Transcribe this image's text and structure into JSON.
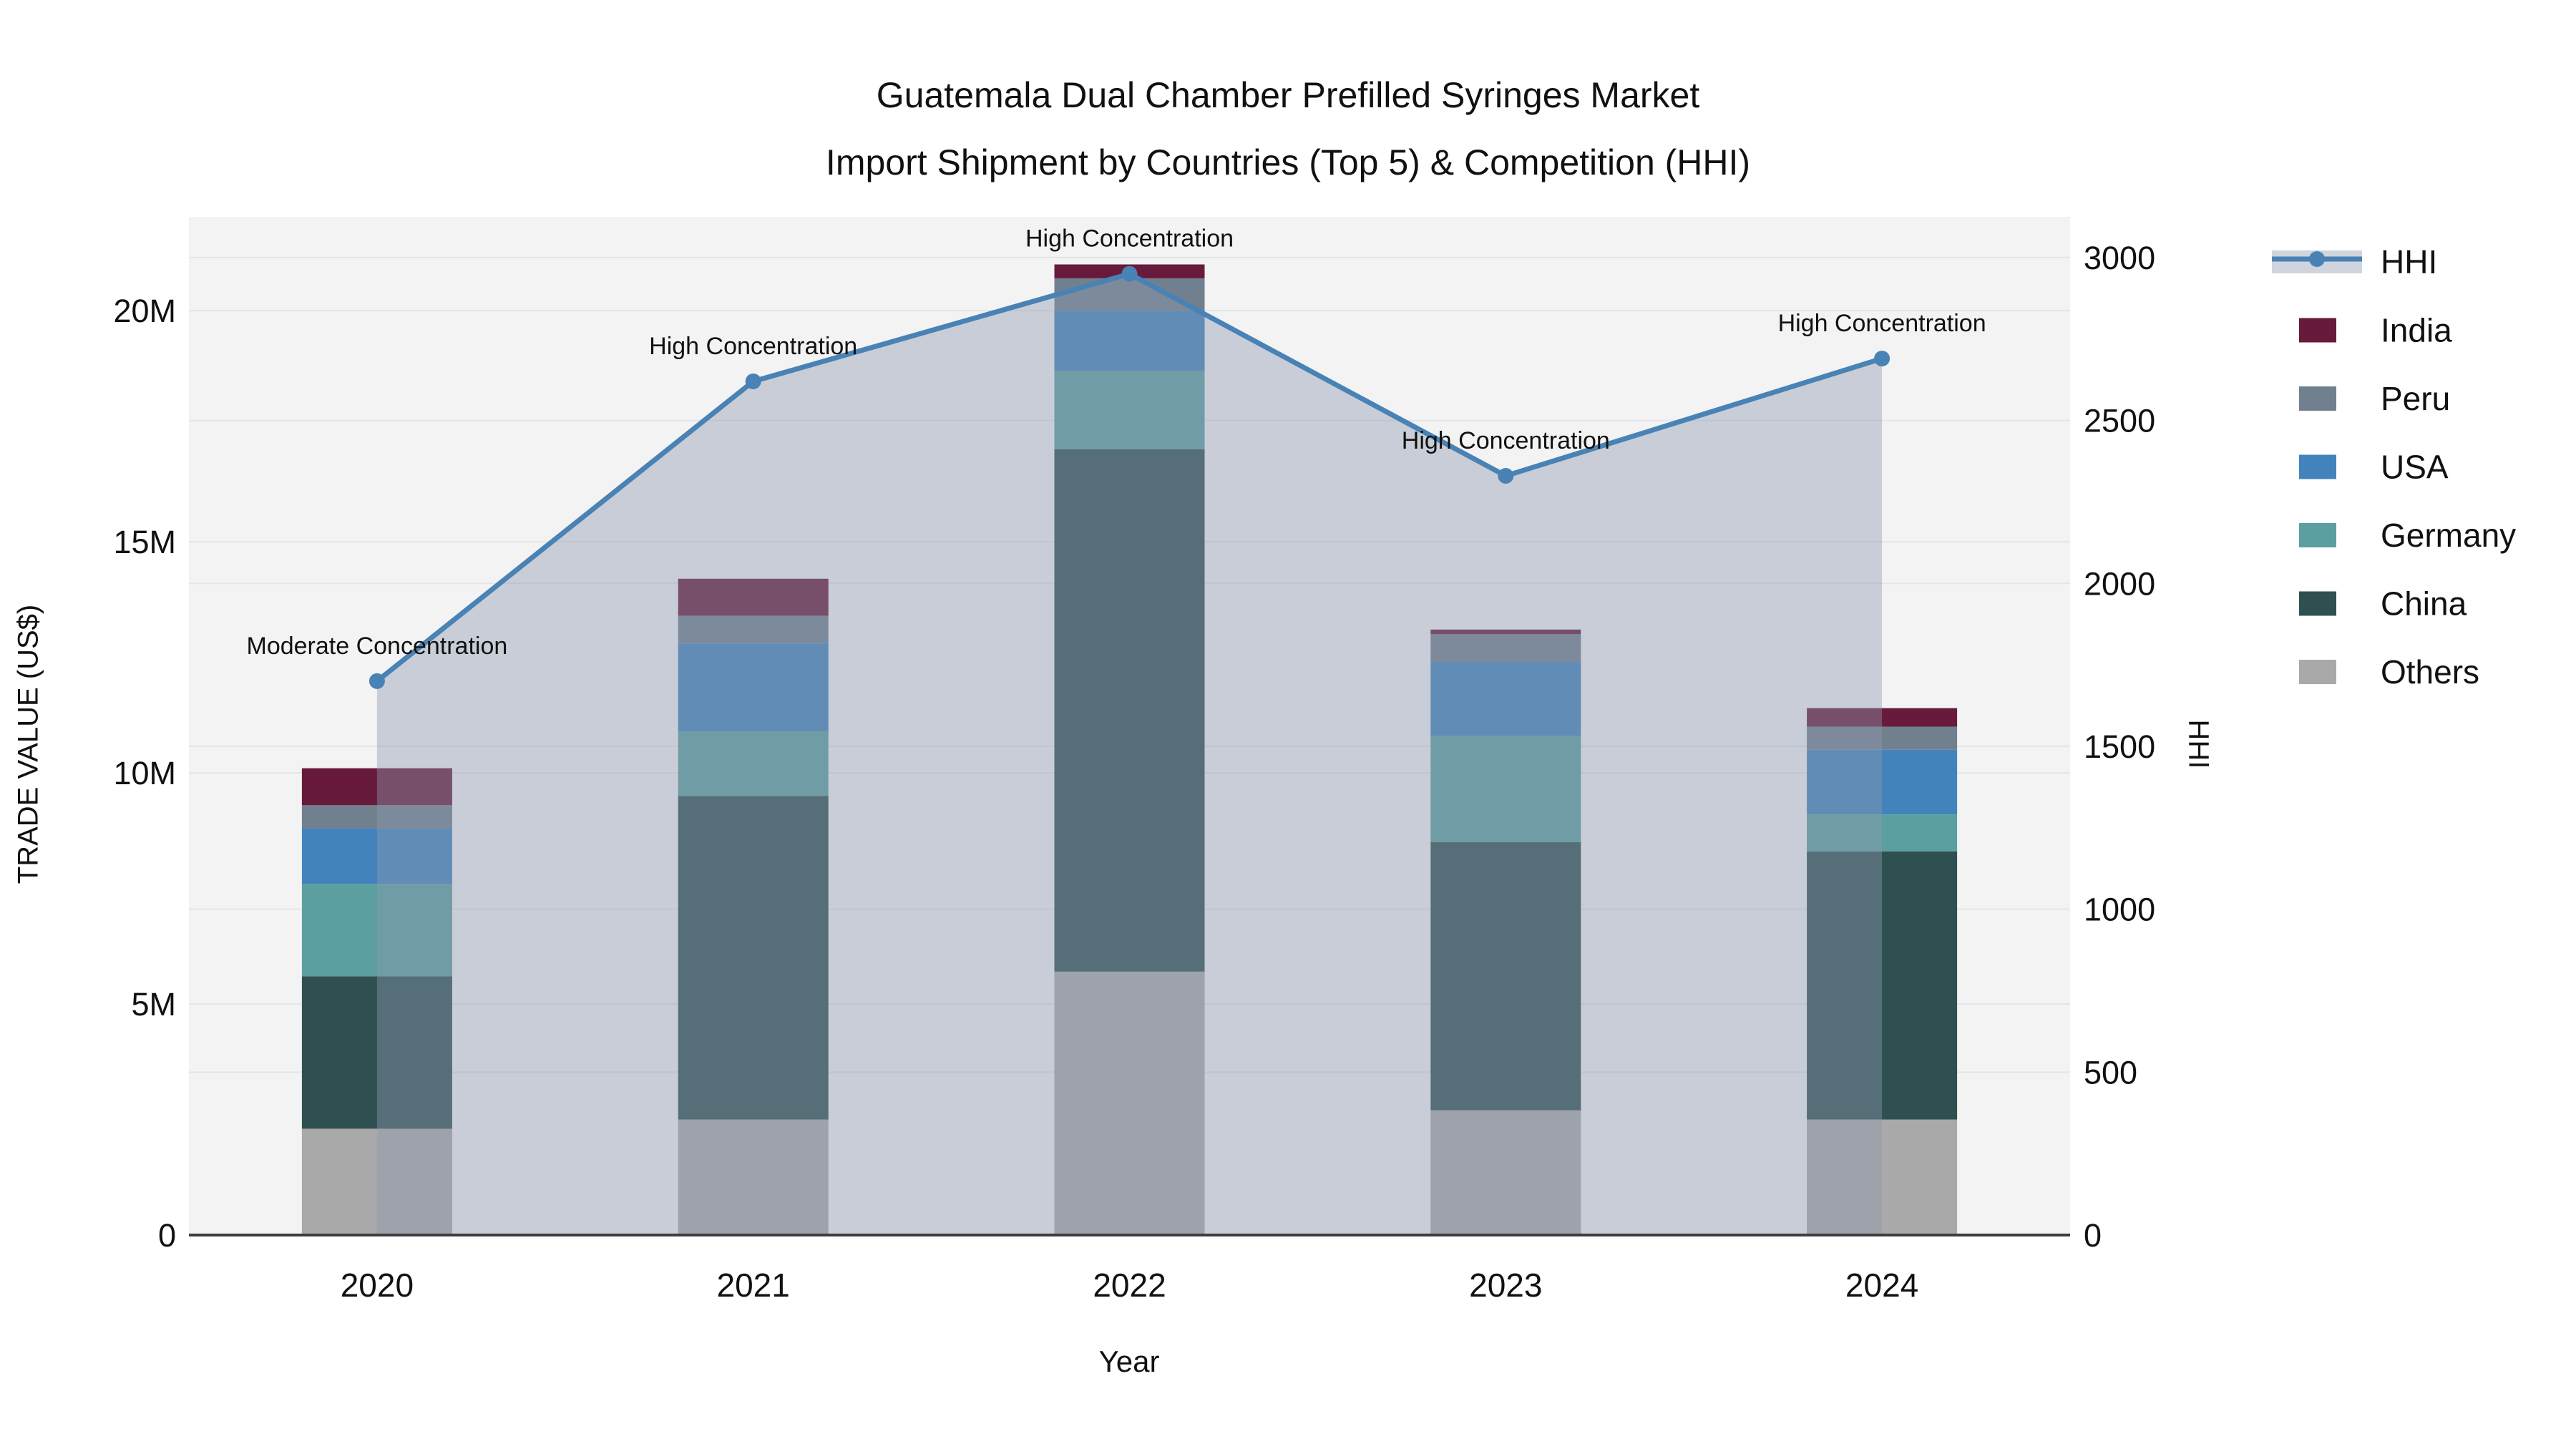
{
  "figure": {
    "title": "Guatemala Dual Chamber Prefilled Syringes Market",
    "subtitle": "Import Shipment by Countries (Top 5) & Competition (HHI)"
  },
  "chart_data": {
    "type": "bar",
    "subtype": "stacked-bars-with-line-overlay",
    "title": "Guatemala Dual Chamber Prefilled Syringes Market",
    "subtitle": "Import Shipment by Countries (Top 5) & Competition (HHI)",
    "xlabel": "Year",
    "ylabel_left": "TRADE VALUE (US$)",
    "ylabel_right": "HHI",
    "categories": [
      "2020",
      "2021",
      "2022",
      "2023",
      "2024"
    ],
    "bar_value_unit": "millions USD",
    "series": [
      {
        "name": "Others",
        "color": "#a9a9a9",
        "values": [
          2.3,
          2.5,
          5.7,
          2.7,
          2.5
        ]
      },
      {
        "name": "China",
        "color": "#2f5051",
        "values": [
          3.3,
          7.0,
          11.3,
          5.8,
          5.8
        ]
      },
      {
        "name": "Germany",
        "color": "#5c9fa0",
        "values": [
          2.0,
          1.4,
          1.7,
          2.3,
          0.8
        ]
      },
      {
        "name": "USA",
        "color": "#4383bc",
        "values": [
          1.2,
          1.9,
          1.3,
          1.6,
          1.4
        ]
      },
      {
        "name": "Peru",
        "color": "#71808f",
        "values": [
          0.5,
          0.6,
          0.7,
          0.6,
          0.5
        ]
      },
      {
        "name": "India",
        "color": "#681a3c",
        "values": [
          0.8,
          0.8,
          0.3,
          0.1,
          0.4
        ]
      }
    ],
    "bar_totals": [
      10.1,
      14.2,
      21.0,
      13.1,
      11.4
    ],
    "line_series": {
      "name": "HHI",
      "color": "#4982b4",
      "area_fill": "rgba(140,152,175,0.42)",
      "values": [
        1700,
        2620,
        2950,
        2330,
        2690
      ]
    },
    "annotations": [
      {
        "x": "2020",
        "text": "Moderate Concentration"
      },
      {
        "x": "2021",
        "text": "High Concentration"
      },
      {
        "x": "2022",
        "text": "High Concentration"
      },
      {
        "x": "2023",
        "text": "High Concentration"
      },
      {
        "x": "2024",
        "text": "High Concentration"
      }
    ],
    "axes": {
      "left": {
        "ticks": [
          {
            "v": 0,
            "label": "0"
          },
          {
            "v": 5,
            "label": "5M"
          },
          {
            "v": 10,
            "label": "10M"
          },
          {
            "v": 15,
            "label": "15M"
          },
          {
            "v": 20,
            "label": "20M"
          }
        ],
        "range": [
          0,
          22.03
        ]
      },
      "right": {
        "ticks": [
          {
            "v": 0,
            "label": "0"
          },
          {
            "v": 500,
            "label": "500"
          },
          {
            "v": 1000,
            "label": "1000"
          },
          {
            "v": 1500,
            "label": "1500"
          },
          {
            "v": 2000,
            "label": "2000"
          },
          {
            "v": 2500,
            "label": "2500"
          },
          {
            "v": 3000,
            "label": "3000"
          }
        ],
        "range": [
          0,
          3125
        ]
      }
    },
    "legend": {
      "position": "right",
      "items": [
        "HHI",
        "India",
        "Peru",
        "USA",
        "Germany",
        "China",
        "Others"
      ]
    },
    "grid": true,
    "plot_bg": "#f3f3f4",
    "grid_color": "#e4e5e7",
    "axis_line_color": "#3d3d3d"
  }
}
